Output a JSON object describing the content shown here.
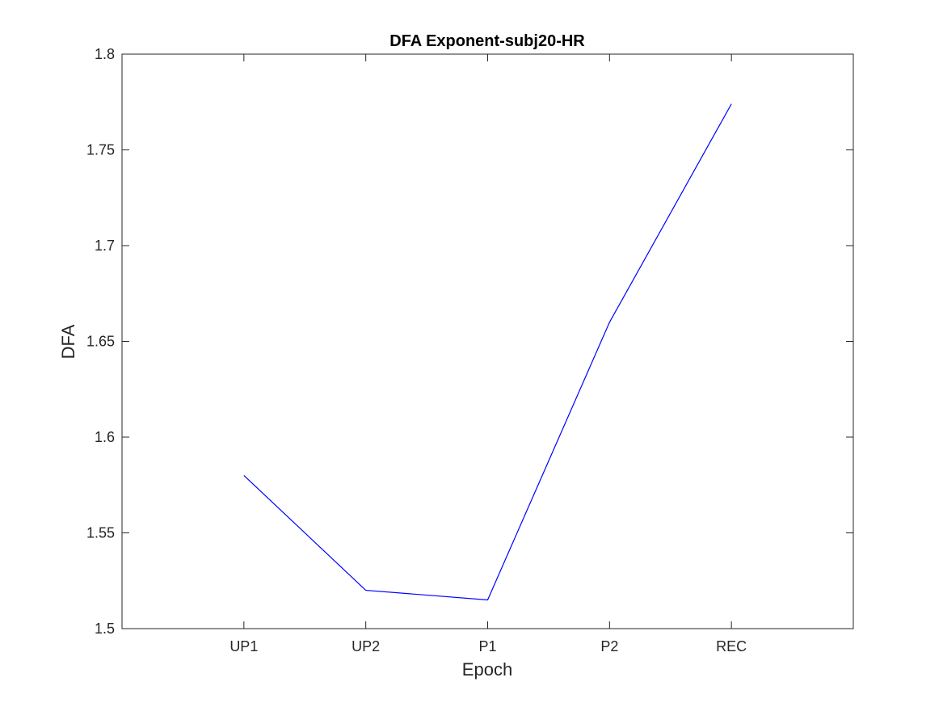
{
  "chart_data": {
    "type": "line",
    "title": "DFA Exponent-subj20-HR",
    "xlabel": "Epoch",
    "ylabel": "DFA",
    "categories": [
      "UP1",
      "UP2",
      "P1",
      "P2",
      "REC"
    ],
    "x_range": [
      0,
      6
    ],
    "ylim": [
      1.5,
      1.8
    ],
    "yticks": [
      1.5,
      1.55,
      1.6,
      1.65,
      1.7,
      1.75,
      1.8
    ],
    "ytick_labels": [
      "1.5",
      "1.55",
      "1.6",
      "1.65",
      "1.7",
      "1.75",
      "1.8"
    ],
    "grid": false,
    "legend": "none",
    "series": [
      {
        "values": [
          1.58,
          1.52,
          1.515,
          1.66,
          1.774
        ],
        "color": "#0000ff"
      }
    ]
  }
}
